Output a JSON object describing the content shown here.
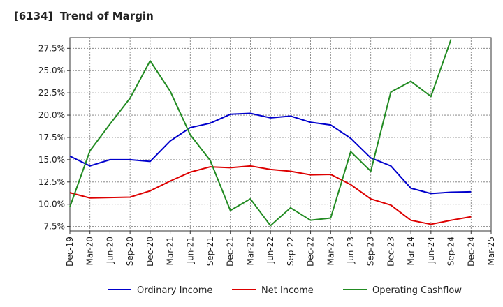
{
  "chart_data": {
    "type": "line",
    "title": "[6134]  Trend of Margin",
    "xlabel": "",
    "ylabel": "",
    "x": [
      "Dec-19",
      "Mar-20",
      "Jun-20",
      "Sep-20",
      "Dec-20",
      "Mar-21",
      "Jun-21",
      "Sep-21",
      "Dec-21",
      "Mar-22",
      "Jun-22",
      "Sep-22",
      "Dec-22",
      "Mar-23",
      "Jun-23",
      "Sep-23",
      "Dec-23",
      "Mar-24",
      "Jun-24",
      "Sep-24",
      "Dec-24",
      "Mar-25"
    ],
    "ylim": [
      7.0,
      28.7
    ],
    "yticks": [
      7.5,
      10.0,
      12.5,
      15.0,
      17.5,
      20.0,
      22.5,
      25.0,
      27.5
    ],
    "ytick_labels": [
      "7.5%",
      "10.0%",
      "12.5%",
      "15.0%",
      "17.5%",
      "20.0%",
      "22.5%",
      "25.0%",
      "27.5%"
    ],
    "grid": true,
    "legend_position": "bottom",
    "series": [
      {
        "name": "Ordinary Income",
        "color": "#0000cc",
        "values": [
          15.4,
          14.3,
          15.0,
          15.0,
          14.8,
          17.1,
          18.6,
          19.1,
          20.1,
          20.2,
          19.7,
          19.9,
          19.2,
          18.9,
          17.4,
          15.2,
          14.3,
          11.8,
          11.2,
          11.35,
          11.4,
          null
        ]
      },
      {
        "name": "Net Income",
        "color": "#dd0000",
        "values": [
          11.3,
          10.7,
          10.75,
          10.8,
          11.5,
          12.6,
          13.6,
          14.2,
          14.1,
          14.3,
          13.9,
          13.7,
          13.3,
          13.35,
          12.2,
          10.6,
          9.9,
          8.2,
          7.75,
          8.2,
          8.6,
          null
        ]
      },
      {
        "name": "Operating Cashflow",
        "color": "#228b22",
        "values": [
          9.7,
          16.0,
          19.0,
          21.9,
          26.1,
          22.7,
          17.8,
          14.9,
          9.3,
          10.6,
          7.6,
          9.6,
          8.2,
          8.45,
          15.9,
          13.7,
          22.6,
          23.8,
          22.1,
          28.5,
          null,
          null
        ]
      }
    ]
  }
}
